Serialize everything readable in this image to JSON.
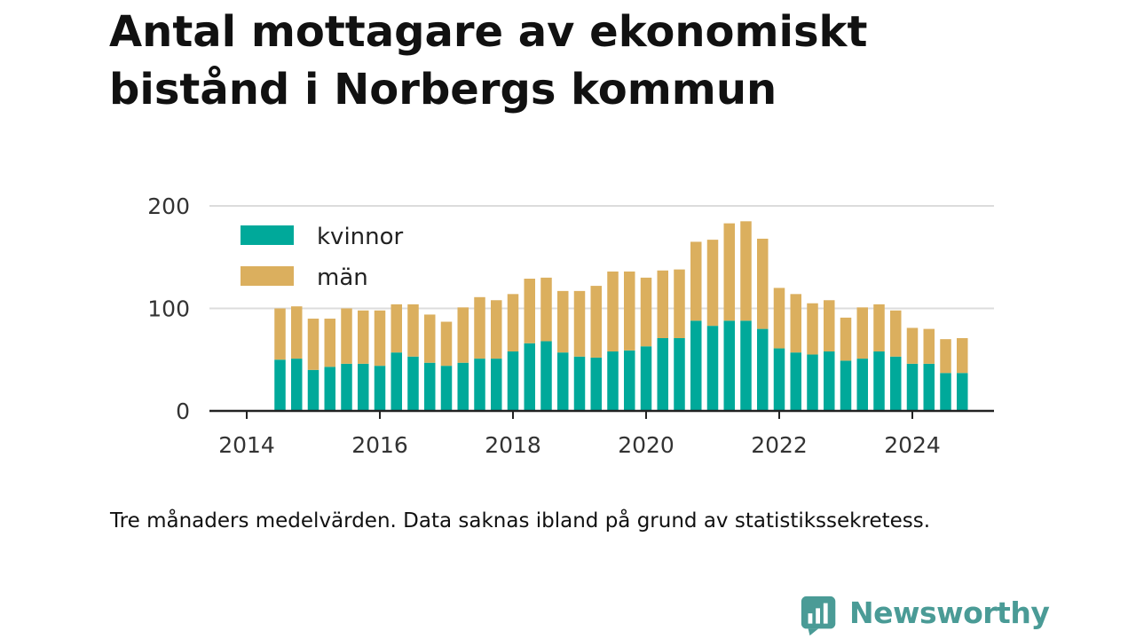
{
  "title": "Antal mottagare av ekonomiskt bistånd i Norbergs kommun",
  "note": "Tre månaders medelvärden. Data saknas ibland på grund av statistikssekretess.",
  "brand": {
    "name": "Newsworthy",
    "logo_icon": "bar-chart-speech-bubble-icon",
    "color": "#4a9b96"
  },
  "chart_data": {
    "type": "bar",
    "stacked": true,
    "grid": true,
    "legend_position": "top-left",
    "ylim": [
      0,
      200
    ],
    "yticks": [
      0,
      100,
      200
    ],
    "xlim": [
      2014,
      2025.25
    ],
    "xticks": [
      2014,
      2016,
      2018,
      2020,
      2022,
      2024
    ],
    "x": [
      2014.5,
      2014.75,
      2015.0,
      2015.25,
      2015.5,
      2015.75,
      2016.0,
      2016.25,
      2016.5,
      2016.75,
      2017.0,
      2017.25,
      2017.5,
      2017.75,
      2018.0,
      2018.25,
      2018.5,
      2018.75,
      2019.0,
      2019.25,
      2019.5,
      2019.75,
      2020.0,
      2020.25,
      2020.5,
      2020.75,
      2021.0,
      2021.25,
      2021.5,
      2021.75,
      2022.0,
      2022.25,
      2022.5,
      2022.75,
      2023.0,
      2023.25,
      2023.5,
      2023.75,
      2024.0,
      2024.25,
      2024.5
    ],
    "series": [
      {
        "name": "kvinnor",
        "color": "#00a99a",
        "values": [
          50,
          51,
          40,
          43,
          46,
          46,
          44,
          57,
          53,
          47,
          44,
          47,
          51,
          51,
          58,
          66,
          68,
          57,
          53,
          52,
          58,
          59,
          63,
          71,
          71,
          88,
          83,
          88,
          88,
          80,
          61,
          57,
          55,
          58,
          49,
          51,
          58,
          53,
          46,
          46,
          37
        ]
      },
      {
        "name": "män",
        "color": "#dbaf5e",
        "values": [
          50,
          51,
          50,
          47,
          54,
          52,
          54,
          47,
          51,
          47,
          43,
          54,
          60,
          57,
          56,
          63,
          62,
          60,
          64,
          70,
          78,
          77,
          67,
          66,
          67,
          77,
          84,
          95,
          97,
          88,
          59,
          57,
          50,
          50,
          42,
          50,
          46,
          45,
          35,
          34,
          33
        ]
      }
    ],
    "extra_bar": {
      "x": 2024.75,
      "values": [
        37,
        34
      ]
    }
  }
}
